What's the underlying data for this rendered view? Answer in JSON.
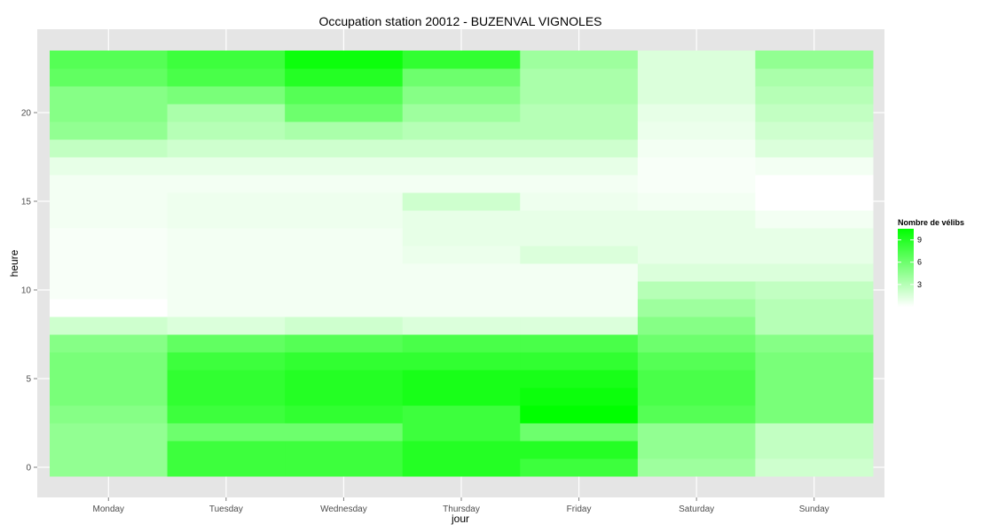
{
  "chart_data": {
    "type": "heatmap",
    "title": "Occupation station 20012 - BUZENVAL VIGNOLES",
    "xlabel": "jour",
    "ylabel": "heure",
    "categories": [
      "Monday",
      "Tuesday",
      "Wednesday",
      "Thursday",
      "Friday",
      "Saturday",
      "Sunday"
    ],
    "hours": [
      0,
      1,
      2,
      3,
      4,
      5,
      6,
      7,
      8,
      9,
      10,
      11,
      12,
      13,
      14,
      15,
      16,
      17,
      18,
      19,
      20,
      21,
      22,
      23
    ],
    "y_ticks": [
      0,
      5,
      10,
      15,
      20
    ],
    "ylim": [
      -0.5,
      23.5
    ],
    "grid": true,
    "legend": {
      "title": "Nombre de vélibs",
      "ticks": [
        3,
        6,
        9
      ],
      "range": [
        0,
        10.5
      ],
      "low_color": "#ffffff",
      "high_color": "#00ff00",
      "placement": "right"
    },
    "values": [
      [
        4.5,
        8.0,
        8.0,
        9.0,
        8.0,
        4.0,
        2.0
      ],
      [
        4.5,
        8.0,
        8.0,
        9.0,
        9.0,
        4.5,
        2.5
      ],
      [
        4.5,
        6.0,
        6.0,
        8.0,
        6.0,
        4.5,
        2.5
      ],
      [
        5.0,
        8.0,
        8.5,
        8.0,
        10.5,
        7.0,
        5.5
      ],
      [
        5.5,
        8.5,
        9.0,
        9.5,
        10.0,
        7.5,
        5.5
      ],
      [
        5.5,
        8.5,
        9.0,
        9.5,
        9.5,
        7.5,
        5.5
      ],
      [
        5.5,
        8.0,
        8.5,
        8.5,
        8.5,
        7.0,
        5.5
      ],
      [
        5.0,
        6.5,
        7.0,
        7.5,
        7.5,
        6.0,
        5.0
      ],
      [
        2.0,
        1.5,
        2.0,
        1.5,
        1.5,
        5.0,
        3.0
      ],
      [
        0.0,
        0.5,
        0.5,
        0.5,
        0.5,
        4.0,
        3.0
      ],
      [
        0.3,
        0.5,
        0.5,
        0.5,
        0.5,
        3.0,
        2.5
      ],
      [
        0.3,
        0.5,
        0.5,
        0.5,
        0.5,
        1.5,
        1.5
      ],
      [
        0.3,
        0.5,
        0.5,
        0.8,
        1.5,
        1.0,
        1.0
      ],
      [
        0.3,
        0.5,
        0.5,
        1.0,
        1.0,
        1.0,
        1.0
      ],
      [
        0.5,
        0.7,
        0.7,
        1.0,
        1.0,
        1.0,
        0.5
      ],
      [
        0.5,
        0.7,
        0.7,
        2.0,
        0.7,
        0.5,
        0.0
      ],
      [
        0.5,
        0.5,
        0.5,
        0.5,
        0.5,
        0.3,
        0.0
      ],
      [
        1.0,
        1.0,
        1.0,
        1.0,
        1.0,
        0.3,
        0.5
      ],
      [
        2.5,
        2.0,
        2.0,
        2.0,
        2.0,
        0.5,
        1.5
      ],
      [
        4.5,
        3.0,
        3.5,
        3.0,
        3.0,
        0.8,
        2.0
      ],
      [
        5.0,
        3.5,
        6.0,
        4.0,
        3.0,
        1.0,
        2.5
      ],
      [
        5.0,
        5.5,
        7.0,
        5.0,
        3.5,
        1.5,
        3.0
      ],
      [
        6.5,
        7.5,
        9.0,
        6.0,
        3.5,
        1.5,
        3.5
      ],
      [
        7.0,
        8.0,
        10.0,
        8.5,
        4.0,
        1.5,
        4.5
      ]
    ]
  }
}
